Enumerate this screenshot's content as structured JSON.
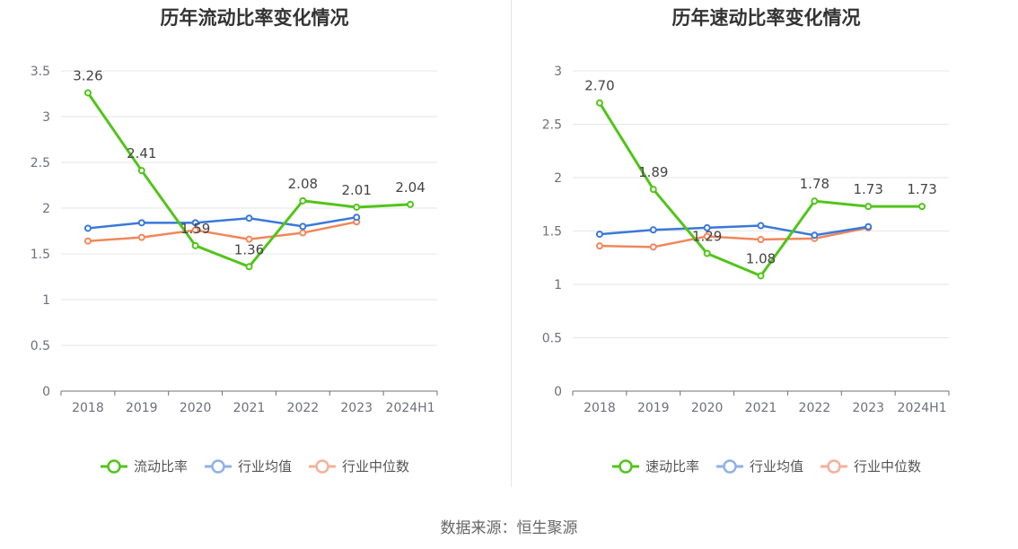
{
  "source": "数据来源：恒生聚源",
  "colors": {
    "company": "#52c41a",
    "avg": "#3a78d8",
    "median": "#f0875b",
    "avg_legend": "#8fb0ea",
    "median_legend": "#f5b09a"
  },
  "chart_data": [
    {
      "type": "line",
      "title": "历年流动比率变化情况",
      "categories": [
        "2018",
        "2019",
        "2020",
        "2021",
        "2022",
        "2023",
        "2024H1"
      ],
      "yticks": [
        "0",
        "0.5",
        "1",
        "1.5",
        "2",
        "2.5",
        "3",
        "3.5"
      ],
      "ylim": [
        0,
        3.5
      ],
      "series": [
        {
          "name": "流动比率",
          "key": "company",
          "values": [
            3.26,
            2.41,
            1.59,
            1.36,
            2.08,
            2.01,
            2.04
          ],
          "labels": [
            "3.26",
            "2.41",
            "1.59",
            "1.36",
            "2.08",
            "2.01",
            "2.04"
          ]
        },
        {
          "name": "行业均值",
          "key": "avg",
          "values": [
            1.78,
            1.84,
            1.84,
            1.89,
            1.8,
            1.9,
            null
          ]
        },
        {
          "name": "行业中位数",
          "key": "median",
          "values": [
            1.64,
            1.68,
            1.76,
            1.66,
            1.73,
            1.85,
            null
          ]
        }
      ],
      "legend_position": "bottom"
    },
    {
      "type": "line",
      "title": "历年速动比率变化情况",
      "categories": [
        "2018",
        "2019",
        "2020",
        "2021",
        "2022",
        "2023",
        "2024H1"
      ],
      "yticks": [
        "0",
        "0.5",
        "1",
        "1.5",
        "2",
        "2.5",
        "3"
      ],
      "ylim": [
        0,
        3
      ],
      "series": [
        {
          "name": "速动比率",
          "key": "company",
          "values": [
            2.7,
            1.89,
            1.29,
            1.08,
            1.78,
            1.73,
            1.73
          ],
          "labels": [
            "2.70",
            "1.89",
            "1.29",
            "1.08",
            "1.78",
            "1.73",
            "1.73"
          ]
        },
        {
          "name": "行业均值",
          "key": "avg",
          "values": [
            1.47,
            1.51,
            1.53,
            1.55,
            1.46,
            1.54,
            null
          ]
        },
        {
          "name": "行业中位数",
          "key": "median",
          "values": [
            1.36,
            1.35,
            1.45,
            1.42,
            1.43,
            1.53,
            null
          ]
        }
      ],
      "legend_position": "bottom"
    }
  ]
}
